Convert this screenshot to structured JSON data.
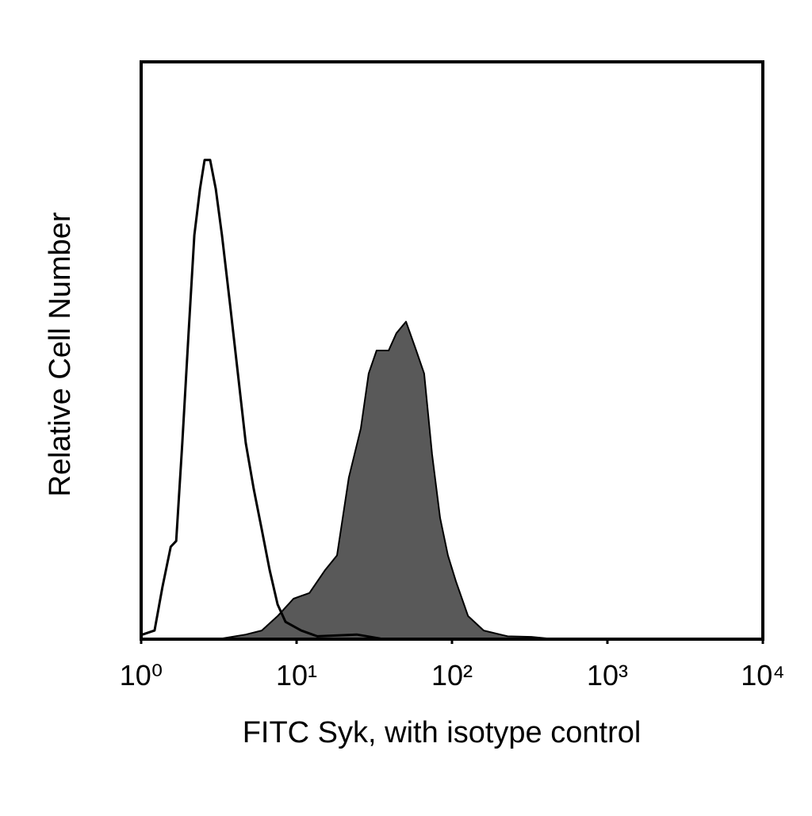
{
  "chart_data": {
    "type": "histogram-overlay",
    "xlabel": "FITC Syk, with isotype control",
    "ylabel": "Relative Cell Number",
    "xscale": "log",
    "xlim": [
      1,
      10000
    ],
    "xticks": [
      {
        "value": 1,
        "label": "10⁰"
      },
      {
        "value": 10,
        "label": "10¹"
      },
      {
        "value": 100,
        "label": "10²"
      },
      {
        "value": 1000,
        "label": "10³"
      },
      {
        "value": 10000,
        "label": "10⁴"
      }
    ],
    "ylim": [
      0,
      100
    ],
    "series": [
      {
        "color": "#000000",
        "filled": false,
        "x": [
          1.02,
          1.22,
          1.37,
          1.55,
          1.68,
          1.84,
          2.02,
          2.2,
          2.39,
          2.56,
          2.78,
          3.02,
          3.31,
          3.73,
          4.19,
          4.71,
          5.3,
          5.97,
          6.71,
          7.55,
          8.49,
          10.7,
          13.6,
          24.4,
          34.7
        ],
        "values": [
          0.8,
          1.5,
          9,
          16,
          17,
          34,
          53,
          70,
          78,
          83,
          83,
          78,
          70,
          58,
          46,
          34,
          26,
          19,
          12,
          6,
          3,
          1.5,
          0.5,
          0.8,
          0.1
        ]
      },
      {
        "color": "#595959",
        "filled": true,
        "x": [
          3.12,
          4.71,
          5.97,
          7.55,
          9.55,
          12.1,
          15.3,
          18.2,
          21.7,
          25.9,
          29.1,
          32.7,
          39.1,
          43.9,
          50.6,
          58.9,
          66.2,
          74.5,
          83.8,
          94.2,
          106,
          127,
          160,
          228,
          324,
          459
        ],
        "values": [
          0,
          0.8,
          1.5,
          4,
          7,
          8,
          12,
          14.5,
          28,
          36.5,
          46,
          50,
          50,
          53,
          55,
          50,
          46,
          32,
          21,
          14.5,
          10,
          4,
          1.5,
          0.5,
          0.4,
          0
        ]
      }
    ]
  }
}
